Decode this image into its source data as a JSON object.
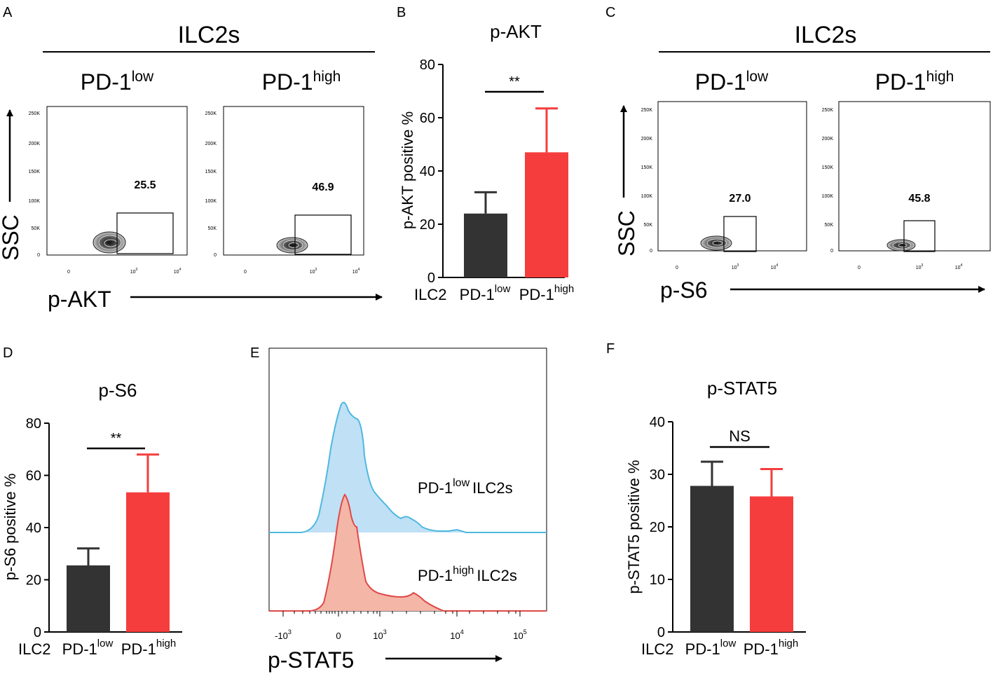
{
  "colors": {
    "dark": "#333333",
    "red": "#f53d3d",
    "blue_fill": "#bfe0f5",
    "blue_line": "#4fb8e0",
    "salmon_fill": "#f4b6a7",
    "salmon_line": "#e04848"
  },
  "panels": {
    "A": {
      "letter": "A",
      "group_title": "ILC2s",
      "plot_labels": [
        {
          "base": "PD-1",
          "sup": "low",
          "gate_value": "25.5"
        },
        {
          "base": "PD-1",
          "sup": "high",
          "gate_value": "46.9"
        }
      ],
      "yaxis_label": "SSC",
      "xaxis_label": "p-AKT",
      "y_ticks": [
        "250K",
        "200K",
        "150K",
        "100K",
        "50K",
        "0"
      ],
      "x_ticks": [
        "0",
        "10",
        "10"
      ],
      "x_tick_exps": [
        "",
        "3",
        "4"
      ]
    },
    "C": {
      "letter": "C",
      "group_title": "ILC2s",
      "plot_labels": [
        {
          "base": "PD-1",
          "sup": "low",
          "gate_value": "27.0"
        },
        {
          "base": "PD-1",
          "sup": "high",
          "gate_value": "45.8"
        }
      ],
      "yaxis_label": "SSC",
      "xaxis_label": "p-S6",
      "y_ticks": [
        "250K",
        "200K",
        "150K",
        "100K",
        "50K",
        "0"
      ],
      "x_ticks": [
        "0",
        "10",
        "10"
      ],
      "x_tick_exps": [
        "",
        "3",
        "4"
      ]
    },
    "E": {
      "letter": "E",
      "xaxis_label": "p-STAT5",
      "x_ticks": [
        "-10",
        "0",
        "10",
        "10",
        "10"
      ],
      "x_tick_exps": [
        "3",
        "",
        "3",
        "4",
        "5"
      ],
      "legend_low_base": "PD-1",
      "legend_low_sup": "low",
      "legend_low_rest": "ILC2s",
      "legend_high_base": "PD-1",
      "legend_high_sup": "high",
      "legend_high_rest": "ILC2s"
    }
  },
  "chart_data": [
    {
      "panel": "B",
      "type": "bar",
      "letter": "B",
      "title": "p-AKT",
      "ylabel": "p-AKT positive %",
      "group_label": "ILC2",
      "categories": [
        {
          "base": "PD-1",
          "sup": "low"
        },
        {
          "base": "PD-1",
          "sup": "high"
        }
      ],
      "values": [
        24,
        47
      ],
      "errors": [
        8,
        16.5
      ],
      "ylim": [
        0,
        80
      ],
      "yticks": [
        0,
        20,
        40,
        60,
        80
      ],
      "significance": "**"
    },
    {
      "panel": "D",
      "type": "bar",
      "letter": "D",
      "title": "p-S6",
      "ylabel": "p-S6 positive %",
      "group_label": "ILC2",
      "categories": [
        {
          "base": "PD-1",
          "sup": "low"
        },
        {
          "base": "PD-1",
          "sup": "high"
        }
      ],
      "values": [
        25.5,
        53.5
      ],
      "errors": [
        6.5,
        14.5
      ],
      "ylim": [
        0,
        80
      ],
      "yticks": [
        0,
        20,
        40,
        60,
        80
      ],
      "significance": "**"
    },
    {
      "panel": "F",
      "type": "bar",
      "letter": "F",
      "title": "p-STAT5",
      "ylabel": "p-STAT5 positive %",
      "group_label": "ILC2",
      "categories": [
        {
          "base": "PD-1",
          "sup": "low"
        },
        {
          "base": "PD-1",
          "sup": "high"
        }
      ],
      "values": [
        27.8,
        25.8
      ],
      "errors": [
        4.6,
        5.2
      ],
      "ylim": [
        0,
        40
      ],
      "yticks": [
        0,
        10,
        20,
        30,
        40
      ],
      "significance": "NS"
    }
  ]
}
